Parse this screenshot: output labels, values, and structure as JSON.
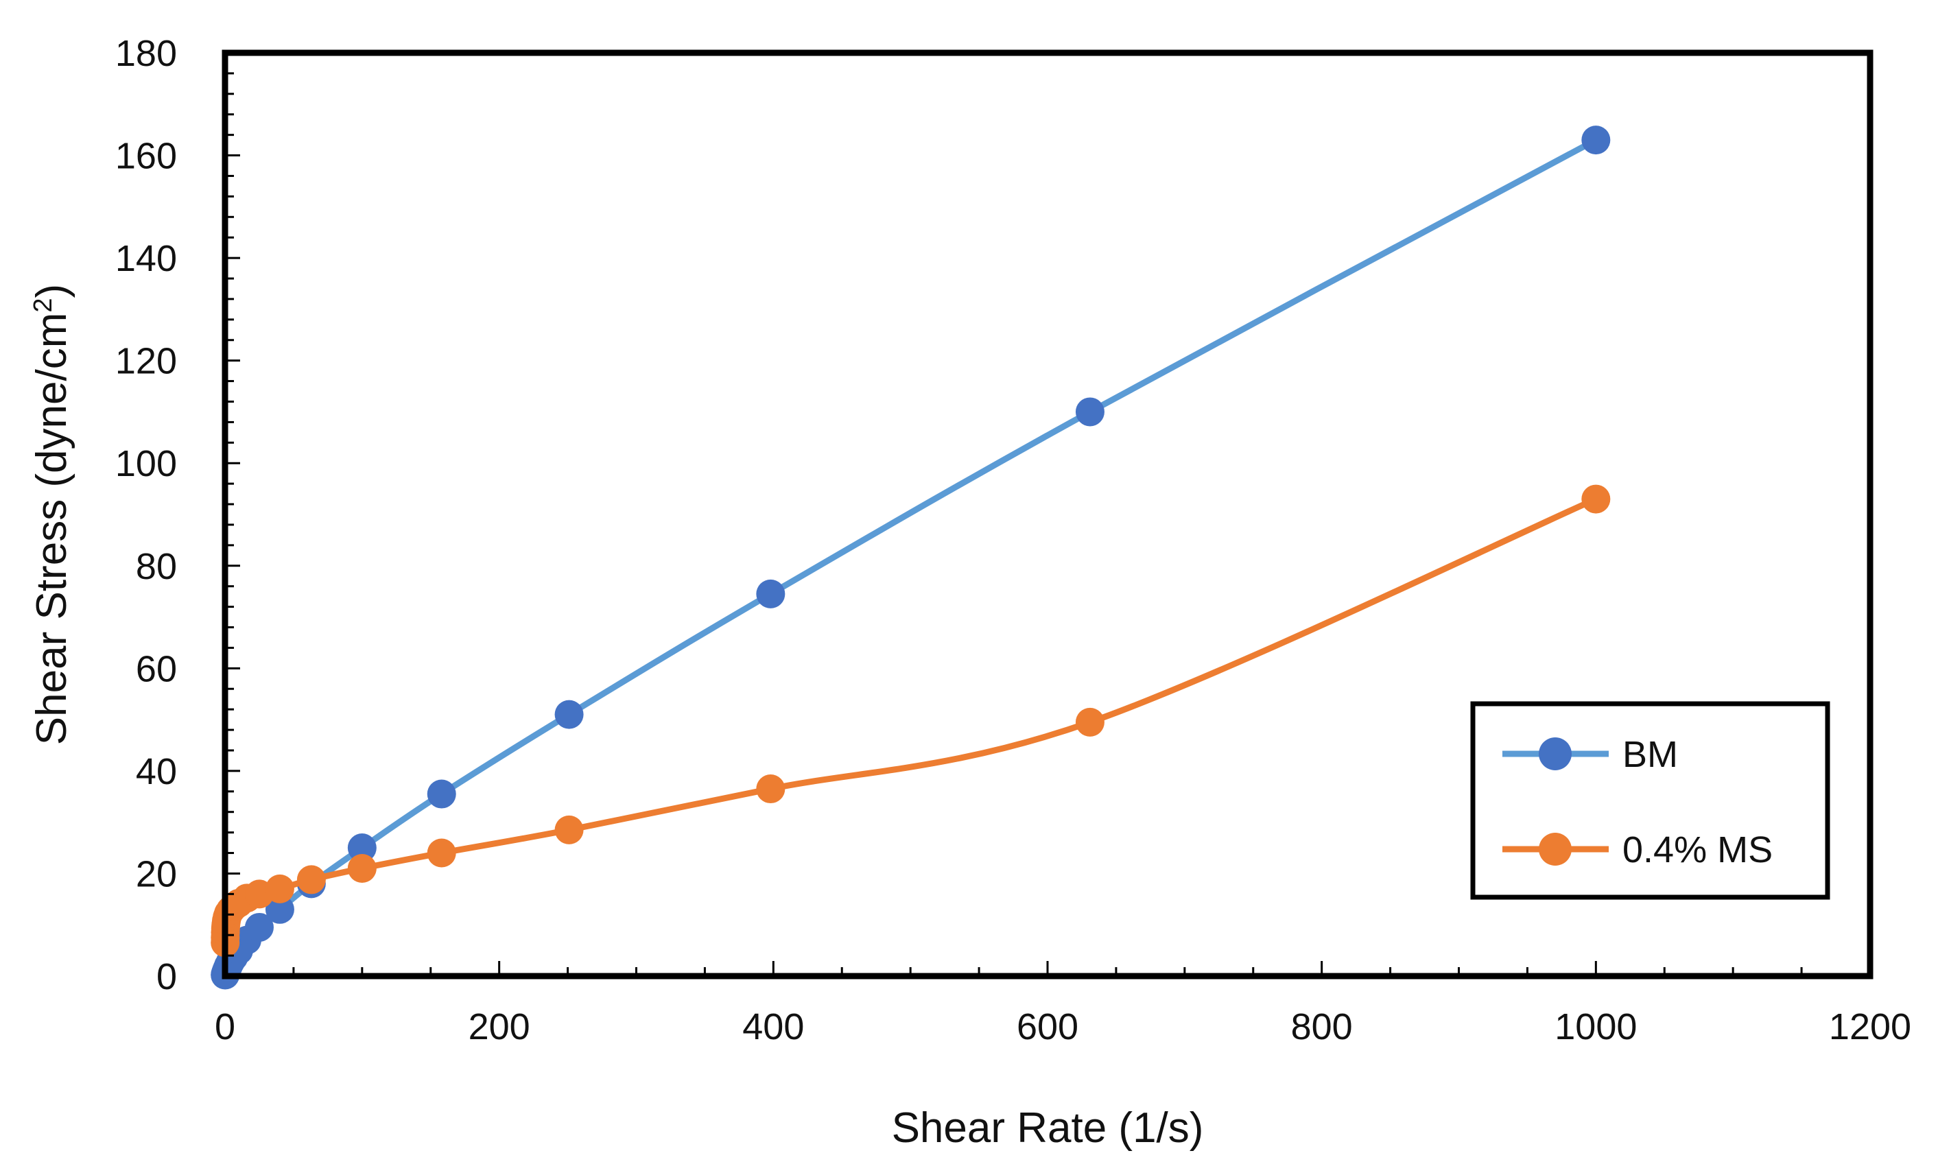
{
  "chart_data": {
    "type": "line",
    "title": "",
    "xlabel": "Shear Rate (1/s)",
    "ylabel_main": "Shear Stress (dyne/cm",
    "ylabel_sup": "2",
    "ylabel_end": ")",
    "xlim": [
      0,
      1200
    ],
    "ylim": [
      0,
      180
    ],
    "x_ticks": [
      0,
      200,
      400,
      600,
      800,
      1000,
      1200
    ],
    "y_ticks": [
      0,
      20,
      40,
      60,
      80,
      100,
      120,
      140,
      160,
      180
    ],
    "x_tick_labels": [
      "0",
      "200",
      "400",
      "600",
      "800",
      "1000",
      "1200"
    ],
    "y_tick_labels": [
      "0",
      "20",
      "40",
      "60",
      "80",
      "100",
      "120",
      "140",
      "160",
      "180"
    ],
    "grid": false,
    "legend_position": "bottom-right",
    "series": [
      {
        "name": "BM",
        "line_color": "#5b9bd5",
        "marker_color": "#4472c4",
        "x": [
          0.1,
          0.16,
          0.25,
          0.4,
          0.63,
          1,
          1.6,
          2.5,
          4,
          6.3,
          10,
          16,
          25,
          40,
          63,
          100,
          158,
          251,
          398,
          631,
          1000
        ],
        "y": [
          0.2,
          0.3,
          0.4,
          0.5,
          0.7,
          1.0,
          1.4,
          2.0,
          2.8,
          3.7,
          5.0,
          7.0,
          9.5,
          13.0,
          18.0,
          25.0,
          35.5,
          51.0,
          74.5,
          110.0,
          163.0
        ]
      },
      {
        "name": "0.4% MS",
        "line_color": "#ed7d31",
        "marker_color": "#ed7d31",
        "x": [
          0.1,
          0.16,
          0.25,
          0.4,
          0.63,
          1,
          1.6,
          2.5,
          4,
          6.3,
          10,
          16,
          25,
          40,
          63,
          100,
          158,
          251,
          398,
          631,
          1000
        ],
        "y": [
          6.5,
          7.5,
          8.5,
          9.3,
          10.0,
          10.8,
          11.5,
          12.2,
          12.8,
          13.5,
          14.2,
          15.2,
          16.0,
          17.0,
          18.8,
          21.0,
          24.0,
          28.5,
          36.5,
          49.5,
          93.0
        ]
      }
    ]
  }
}
